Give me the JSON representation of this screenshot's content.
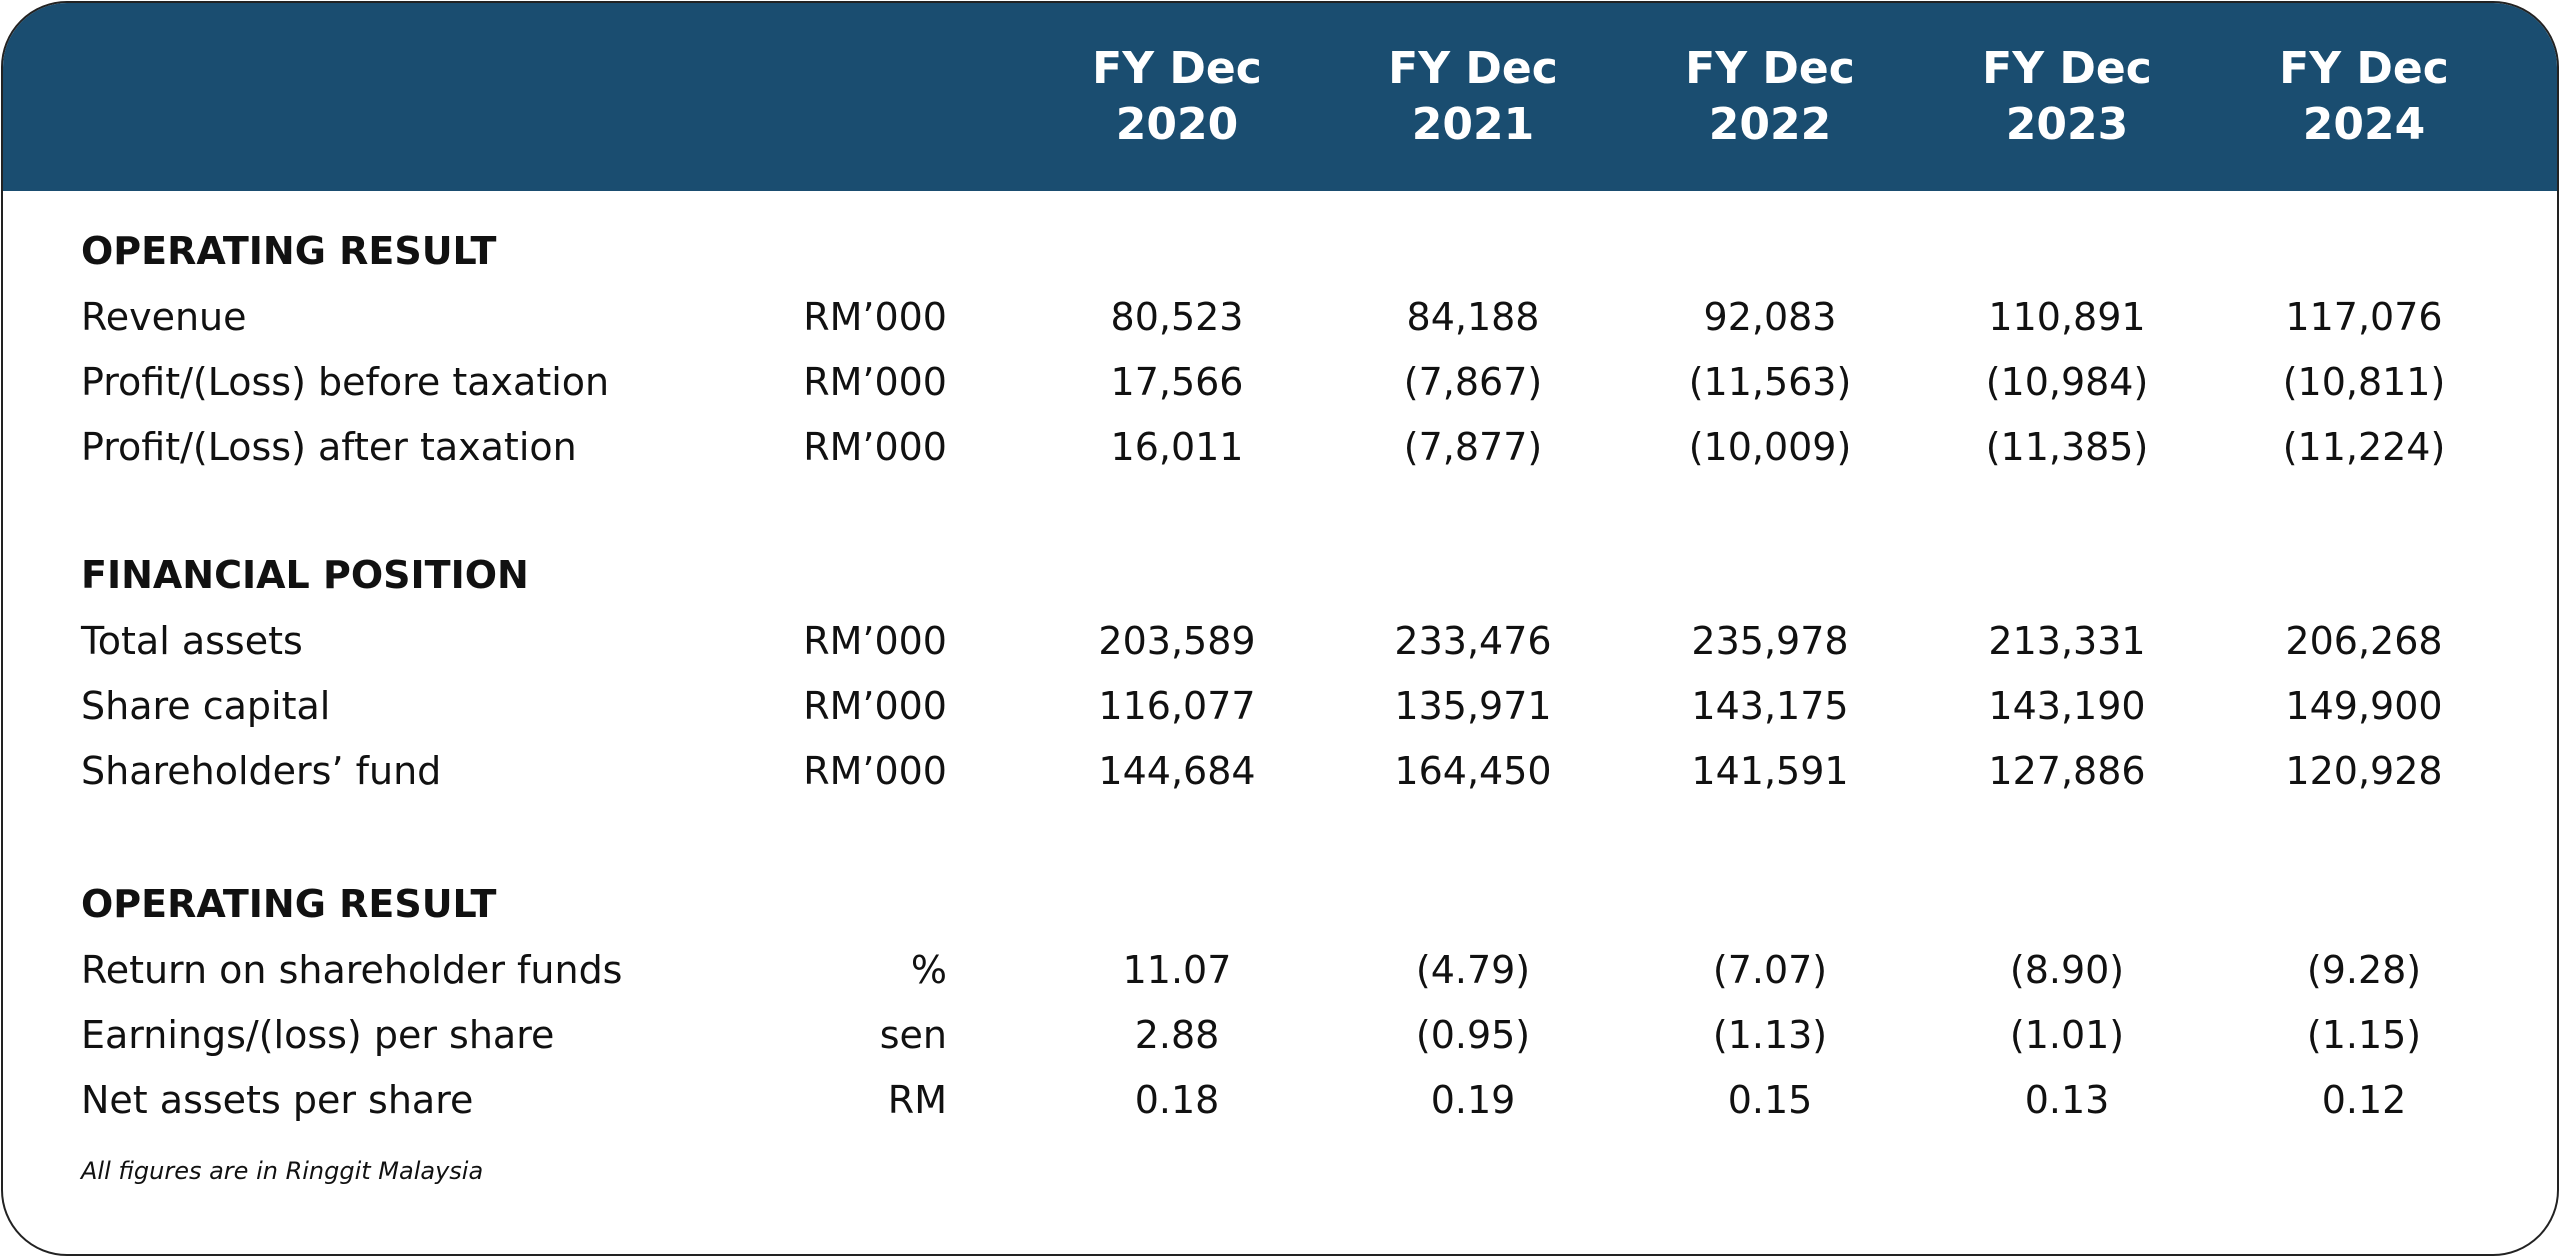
{
  "header": {
    "columns": [
      "FY Dec 2020",
      "FY Dec 2021",
      "FY Dec 2022",
      "FY Dec 2023",
      "FY Dec 2024"
    ]
  },
  "sections": [
    {
      "title": "OPERATING RESULT",
      "rows": [
        {
          "label": "Revenue",
          "unit": "RM’000",
          "values": [
            "80,523",
            "84,188",
            "92,083",
            "110,891",
            "117,076"
          ]
        },
        {
          "label": "Profit/(Loss) before taxation",
          "unit": "RM’000",
          "values": [
            "17,566",
            "(7,867)",
            "(11,563)",
            "(10,984)",
            "(10,811)"
          ]
        },
        {
          "label": "Profit/(Loss) after taxation",
          "unit": "RM’000",
          "values": [
            "16,011",
            "(7,877)",
            "(10,009)",
            "(11,385)",
            "(11,224)"
          ]
        }
      ]
    },
    {
      "title": "FINANCIAL POSITION",
      "rows": [
        {
          "label": "Total assets",
          "unit": "RM’000",
          "values": [
            "203,589",
            "233,476",
            "235,978",
            "213,331",
            "206,268"
          ]
        },
        {
          "label": "Share capital",
          "unit": "RM’000",
          "values": [
            "116,077",
            "135,971",
            "143,175",
            "143,190",
            "149,900"
          ]
        },
        {
          "label": "Shareholders’ fund",
          "unit": "RM’000",
          "values": [
            "144,684",
            "164,450",
            "141,591",
            "127,886",
            "120,928"
          ]
        }
      ]
    },
    {
      "title": "OPERATING RESULT",
      "rows": [
        {
          "label": "Return on shareholder funds",
          "unit": "%",
          "values": [
            "11.07",
            "(4.79)",
            "(7.07)",
            "(8.90)",
            "(9.28)"
          ]
        },
        {
          "label": "Earnings/(loss) per share",
          "unit": "sen",
          "values": [
            "2.88",
            "(0.95)",
            "(1.13)",
            "(1.01)",
            "(1.15)"
          ]
        },
        {
          "label": "Net assets per share",
          "unit": "RM",
          "values": [
            "0.18",
            "0.19",
            "0.15",
            "0.13",
            "0.12"
          ]
        }
      ]
    }
  ],
  "footnote": "All figures are in Ringgit Malaysia"
}
